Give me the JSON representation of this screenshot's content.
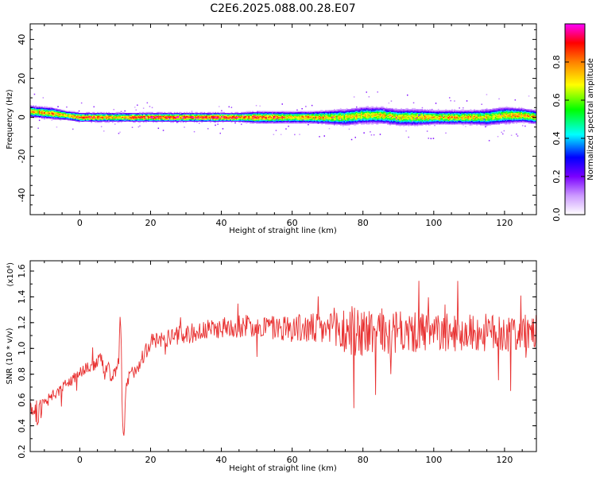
{
  "title": "C2E6.2025.088.00.28.E07",
  "chart_data": [
    {
      "type": "heatmap",
      "title": "C2E6.2025.088.00.28.E07",
      "xlabel": "Height of straight line (km)",
      "ylabel": "Frequency (Hz)",
      "xlim": [
        -14,
        129
      ],
      "ylim": [
        -50,
        48
      ],
      "xticks": [
        "0",
        "20",
        "40",
        "60",
        "80",
        "100",
        "120"
      ],
      "yticks": [
        "-40",
        "-20",
        "0",
        "20",
        "40"
      ],
      "colorbar": {
        "label": "Normalized spectral amplitude",
        "range": [
          0,
          1
        ],
        "ticks": [
          "0.0",
          "0.2",
          "0.4",
          "0.6",
          "0.8"
        ],
        "colors": [
          "#ffffff",
          "#cc99ff",
          "#7a00ff",
          "#0000ff",
          "#00ffff",
          "#00ff00",
          "#ffff00",
          "#ff8000",
          "#ff0000",
          "#ff00ff"
        ]
      },
      "ridge": {
        "description_points_x": [
          -14,
          -8,
          -4,
          0,
          5,
          10,
          15,
          20,
          25,
          30,
          35,
          40,
          45,
          50,
          55,
          60,
          65,
          70,
          75,
          80,
          85,
          90,
          95,
          100,
          105,
          110,
          115,
          120,
          125,
          129
        ],
        "center_frequency": [
          3,
          2,
          1,
          0,
          0,
          0,
          0,
          0,
          0,
          0,
          0,
          0,
          0,
          0,
          0,
          0,
          0,
          0,
          0,
          1,
          1,
          0,
          0,
          0,
          0,
          0,
          0,
          1,
          1,
          0
        ],
        "peak_amplitude": [
          0.8,
          0.85,
          0.8,
          0.9,
          0.95,
          0.85,
          0.9,
          0.95,
          0.95,
          1.0,
          1.0,
          1.0,
          1.0,
          0.95,
          0.9,
          0.85,
          0.85,
          0.8,
          0.75,
          0.8,
          0.8,
          0.75,
          0.8,
          0.8,
          0.8,
          0.8,
          0.75,
          0.8,
          0.85,
          0.8
        ],
        "spread_hz": [
          2.5,
          2.5,
          2,
          2,
          2,
          2,
          2,
          2,
          2,
          2,
          2,
          2,
          2,
          2.5,
          2.5,
          2.5,
          2.5,
          3,
          3.5,
          3.5,
          3.5,
          3.5,
          3.5,
          3,
          3,
          3,
          3.5,
          3.5,
          3,
          3
        ]
      },
      "color_scale": "#ff00ff"
    },
    {
      "type": "line",
      "xlabel": "Height of straight line (km)",
      "ylabel": "SNR (10 * v/v)",
      "y_multiplier": "(x10⁴)",
      "xlim": [
        -14,
        129
      ],
      "ylim": [
        0.2,
        1.68
      ],
      "xticks": [
        "0",
        "20",
        "40",
        "60",
        "80",
        "100",
        "120"
      ],
      "yticks": [
        "0.2",
        "0.4",
        "0.6",
        "0.8",
        "1.0",
        "1.2",
        "1.4",
        "1.6"
      ],
      "series": [
        {
          "color": "#e83030",
          "x": [
            -14,
            -12,
            -10,
            -8,
            -6,
            -4,
            -2,
            0,
            2,
            4,
            6,
            7,
            8,
            9,
            10,
            11,
            11.5,
            12,
            12.5,
            13,
            14,
            16,
            18,
            20,
            24,
            28,
            32,
            36,
            40,
            44,
            48,
            52,
            56,
            60,
            64,
            68,
            72,
            76,
            80,
            84,
            88,
            92,
            96,
            100,
            104,
            108,
            112,
            116,
            120,
            124,
            128
          ],
          "y": [
            0.55,
            0.5,
            0.56,
            0.62,
            0.66,
            0.72,
            0.76,
            0.82,
            0.86,
            0.86,
            0.94,
            0.8,
            0.88,
            0.75,
            0.82,
            0.9,
            1.3,
            0.45,
            0.3,
            0.68,
            0.78,
            0.85,
            0.95,
            1.05,
            1.08,
            1.1,
            1.12,
            1.14,
            1.16,
            1.17,
            1.18,
            1.17,
            1.16,
            1.16,
            1.15,
            1.15,
            1.14,
            1.13,
            1.13,
            1.12,
            1.12,
            1.12,
            1.12,
            1.12,
            1.12,
            1.12,
            1.12,
            1.12,
            1.12,
            1.12,
            1.12
          ],
          "noise": [
            0.05,
            0.1,
            0.06,
            0.05,
            0.05,
            0.05,
            0.05,
            0.05,
            0.05,
            0.05,
            0.04,
            0.05,
            0.05,
            0.05,
            0.05,
            0.05,
            0.05,
            0.05,
            0.05,
            0.05,
            0.06,
            0.06,
            0.07,
            0.07,
            0.07,
            0.07,
            0.08,
            0.08,
            0.08,
            0.09,
            0.09,
            0.1,
            0.1,
            0.11,
            0.12,
            0.13,
            0.18,
            0.22,
            0.2,
            0.2,
            0.18,
            0.16,
            0.16,
            0.15,
            0.15,
            0.15,
            0.15,
            0.15,
            0.15,
            0.15,
            0.14
          ]
        }
      ]
    }
  ]
}
